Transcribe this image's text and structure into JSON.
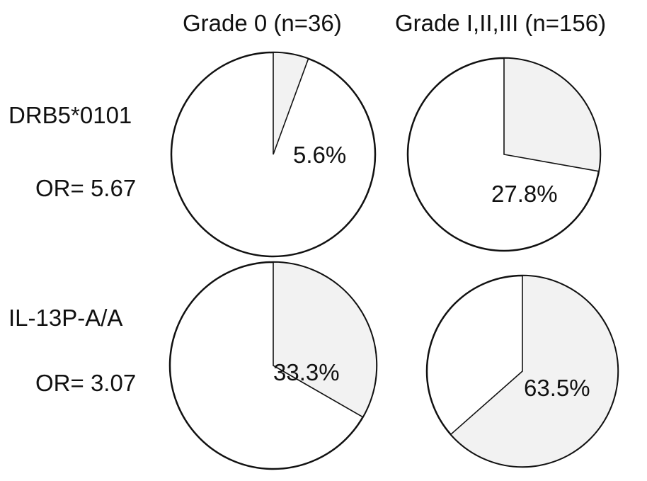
{
  "chart_data": {
    "type": "pie",
    "columns": [
      "Grade 0 (n=36)",
      "Grade I,II,III (n=156)"
    ],
    "rows": [
      {
        "marker": "DRB5*0101",
        "or_label": "OR= 5.67"
      },
      {
        "marker": "IL-13P-A/A",
        "or_label": "OR= 3.07"
      }
    ],
    "pies": [
      {
        "row": 0,
        "col": 0,
        "value": 5.6,
        "label": "5.6%"
      },
      {
        "row": 0,
        "col": 1,
        "value": 27.8,
        "label": "27.8%"
      },
      {
        "row": 1,
        "col": 0,
        "value": 33.3,
        "label": "33.3%"
      },
      {
        "row": 1,
        "col": 1,
        "value": 63.5,
        "label": "63.5%"
      }
    ],
    "colors": {
      "highlighted_slice": "#f2f2f2",
      "remainder": "#ffffff",
      "outline": "#111111"
    }
  }
}
